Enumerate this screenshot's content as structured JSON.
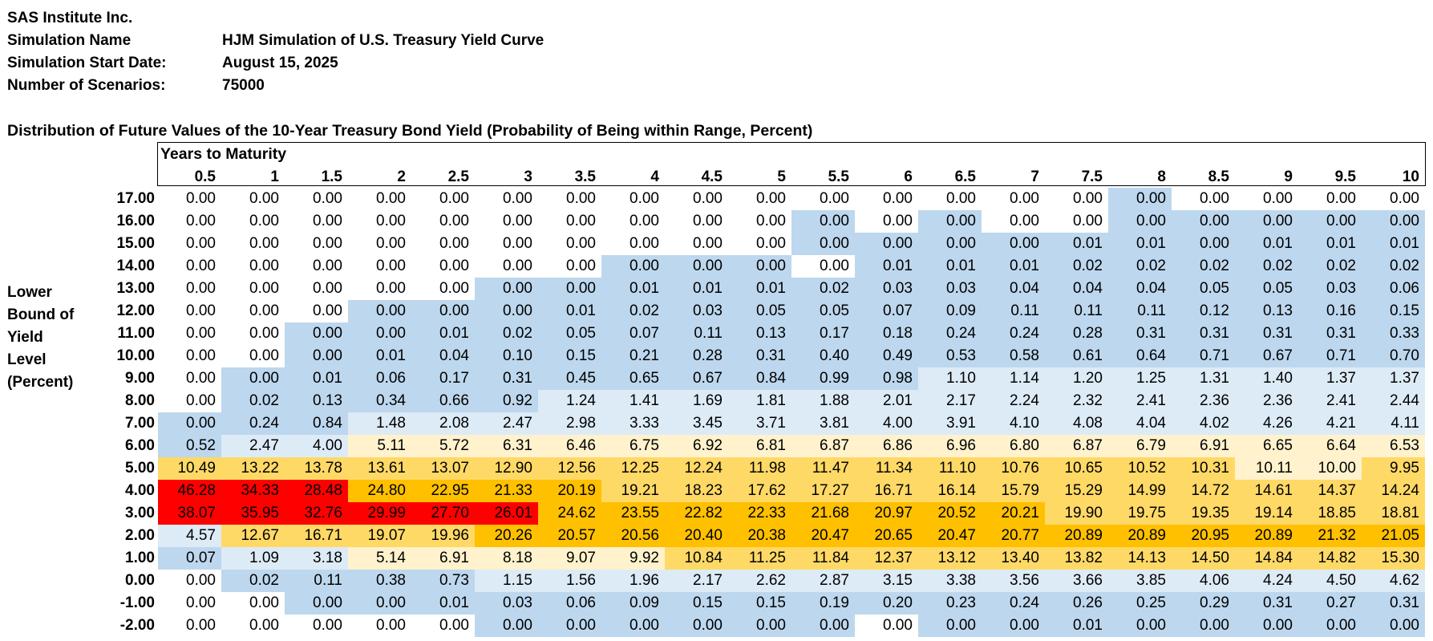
{
  "header": {
    "company": "SAS Institute Inc.",
    "rows": [
      {
        "label": "Simulation Name",
        "value": "HJM Simulation of U.S. Treasury Yield Curve"
      },
      {
        "label": "Simulation Start Date:",
        "value": "August 15, 2025"
      },
      {
        "label": "Number of Scenarios:",
        "value": "75000"
      }
    ]
  },
  "table": {
    "title": "Distribution of Future Values of the 10-Year Treasury Bond Yield (Probability of Being within Range, Percent)",
    "column_group_label": "Years to Maturity",
    "row_axis_label": [
      "Lower",
      "Bound of",
      "Yield",
      "Level",
      "(Percent)"
    ],
    "columns": [
      "0.5",
      "1",
      "1.5",
      "2",
      "2.5",
      "3",
      "3.5",
      "4",
      "4.5",
      "5",
      "5.5",
      "6",
      "6.5",
      "7",
      "7.5",
      "8",
      "8.5",
      "9",
      "9.5",
      "10"
    ],
    "colors": {
      "white": "#ffffff",
      "blue": "#bdd7ee",
      "lightblue": "#ddebf7",
      "lightyellow": "#fff2cc",
      "yellow": "#ffd966",
      "orange": "#ffc000",
      "red": "#ff0000"
    },
    "rows": [
      {
        "label": "17.00",
        "values": [
          "0.00",
          "0.00",
          "0.00",
          "0.00",
          "0.00",
          "0.00",
          "0.00",
          "0.00",
          "0.00",
          "0.00",
          "0.00",
          "0.00",
          "0.00",
          "0.00",
          "0.00",
          "0.00",
          "0.00",
          "0.00",
          "0.00",
          "0.00"
        ],
        "fills": "WWWWWWWWWWWWWWWBWWWW"
      },
      {
        "label": "16.00",
        "values": [
          "0.00",
          "0.00",
          "0.00",
          "0.00",
          "0.00",
          "0.00",
          "0.00",
          "0.00",
          "0.00",
          "0.00",
          "0.00",
          "0.00",
          "0.00",
          "0.00",
          "0.00",
          "0.00",
          "0.00",
          "0.00",
          "0.00",
          "0.00"
        ],
        "fills": "WWWWWWWWWWBWBWWBBBBB"
      },
      {
        "label": "15.00",
        "values": [
          "0.00",
          "0.00",
          "0.00",
          "0.00",
          "0.00",
          "0.00",
          "0.00",
          "0.00",
          "0.00",
          "0.00",
          "0.00",
          "0.00",
          "0.00",
          "0.00",
          "0.01",
          "0.01",
          "0.00",
          "0.01",
          "0.01",
          "0.01"
        ],
        "fills": "WWWWWWWWWWBBBBBBBBBB"
      },
      {
        "label": "14.00",
        "values": [
          "0.00",
          "0.00",
          "0.00",
          "0.00",
          "0.00",
          "0.00",
          "0.00",
          "0.00",
          "0.00",
          "0.00",
          "0.00",
          "0.01",
          "0.01",
          "0.01",
          "0.02",
          "0.02",
          "0.02",
          "0.02",
          "0.02",
          "0.02"
        ],
        "fills": "WWWWWWWBBBWBBBBBBBBB"
      },
      {
        "label": "13.00",
        "values": [
          "0.00",
          "0.00",
          "0.00",
          "0.00",
          "0.00",
          "0.00",
          "0.00",
          "0.01",
          "0.01",
          "0.01",
          "0.02",
          "0.03",
          "0.03",
          "0.04",
          "0.04",
          "0.04",
          "0.05",
          "0.05",
          "0.03",
          "0.06"
        ],
        "fills": "WWWWWBBBBBBBBBBBBBBB"
      },
      {
        "label": "12.00",
        "values": [
          "0.00",
          "0.00",
          "0.00",
          "0.00",
          "0.00",
          "0.00",
          "0.01",
          "0.02",
          "0.03",
          "0.05",
          "0.05",
          "0.07",
          "0.09",
          "0.11",
          "0.11",
          "0.11",
          "0.12",
          "0.13",
          "0.16",
          "0.15"
        ],
        "fills": "WWWBBBBBBBBBBBBBBBBB"
      },
      {
        "label": "11.00",
        "values": [
          "0.00",
          "0.00",
          "0.00",
          "0.00",
          "0.01",
          "0.02",
          "0.05",
          "0.07",
          "0.11",
          "0.13",
          "0.17",
          "0.18",
          "0.24",
          "0.24",
          "0.28",
          "0.31",
          "0.31",
          "0.31",
          "0.31",
          "0.33"
        ],
        "fills": "WWBBBBBBBBBBBBBBBBBB"
      },
      {
        "label": "10.00",
        "values": [
          "0.00",
          "0.00",
          "0.00",
          "0.01",
          "0.04",
          "0.10",
          "0.15",
          "0.21",
          "0.28",
          "0.31",
          "0.40",
          "0.49",
          "0.53",
          "0.58",
          "0.61",
          "0.64",
          "0.71",
          "0.67",
          "0.71",
          "0.70"
        ],
        "fills": "WWBBBBBBBBBBBBBBBBBB"
      },
      {
        "label": "9.00",
        "values": [
          "0.00",
          "0.00",
          "0.01",
          "0.06",
          "0.17",
          "0.31",
          "0.45",
          "0.65",
          "0.67",
          "0.84",
          "0.99",
          "0.98",
          "1.10",
          "1.14",
          "1.20",
          "1.25",
          "1.31",
          "1.40",
          "1.37",
          "1.37"
        ],
        "fills": "WBBBBBBBBBBBLLLLLLLL"
      },
      {
        "label": "8.00",
        "values": [
          "0.00",
          "0.02",
          "0.13",
          "0.34",
          "0.66",
          "0.92",
          "1.24",
          "1.41",
          "1.69",
          "1.81",
          "1.88",
          "2.01",
          "2.17",
          "2.24",
          "2.32",
          "2.41",
          "2.36",
          "2.36",
          "2.41",
          "2.44"
        ],
        "fills": "WBBBBBLLLLLLLLLLLLLL"
      },
      {
        "label": "7.00",
        "values": [
          "0.00",
          "0.24",
          "0.84",
          "1.48",
          "2.08",
          "2.47",
          "2.98",
          "3.33",
          "3.45",
          "3.71",
          "3.81",
          "4.00",
          "3.91",
          "4.10",
          "4.08",
          "4.04",
          "4.02",
          "4.26",
          "4.21",
          "4.11"
        ],
        "fills": "BBBLLLLLLLLLLLLLLLLL"
      },
      {
        "label": "6.00",
        "values": [
          "0.52",
          "2.47",
          "4.00",
          "5.11",
          "5.72",
          "6.31",
          "6.46",
          "6.75",
          "6.92",
          "6.81",
          "6.87",
          "6.86",
          "6.96",
          "6.80",
          "6.87",
          "6.79",
          "6.91",
          "6.65",
          "6.64",
          "6.53"
        ],
        "fills": "BLLPPPPPPPPPPPPPPPPP"
      },
      {
        "label": "5.00",
        "values": [
          "10.49",
          "13.22",
          "13.78",
          "13.61",
          "13.07",
          "12.90",
          "12.56",
          "12.25",
          "12.24",
          "11.98",
          "11.47",
          "11.34",
          "11.10",
          "10.76",
          "10.65",
          "10.52",
          "10.31",
          "10.11",
          "10.00",
          "9.95"
        ],
        "fills": "YYYYYYYYYYYYYYYYYPPY"
      },
      {
        "label": "4.00",
        "values": [
          "46.28",
          "34.33",
          "28.48",
          "24.80",
          "22.95",
          "21.33",
          "20.19",
          "19.21",
          "18.23",
          "17.62",
          "17.27",
          "16.71",
          "16.14",
          "15.79",
          "15.29",
          "14.99",
          "14.72",
          "14.61",
          "14.37",
          "14.24"
        ],
        "fills": "RRROOOOYYYYYYYYYYYYY"
      },
      {
        "label": "3.00",
        "values": [
          "38.07",
          "35.95",
          "32.76",
          "29.99",
          "27.70",
          "26.01",
          "24.62",
          "23.55",
          "22.82",
          "22.33",
          "21.68",
          "20.97",
          "20.52",
          "20.21",
          "19.90",
          "19.75",
          "19.35",
          "19.14",
          "18.85",
          "18.81"
        ],
        "fills": "RRRRRROOOOOOOOYYYYYY"
      },
      {
        "label": "2.00",
        "values": [
          "4.57",
          "12.67",
          "16.71",
          "19.07",
          "19.96",
          "20.26",
          "20.57",
          "20.56",
          "20.40",
          "20.38",
          "20.47",
          "20.65",
          "20.47",
          "20.77",
          "20.89",
          "20.89",
          "20.95",
          "20.89",
          "21.32",
          "21.05"
        ],
        "fills": "LYYYYOOOOOOOOOOOOOOO"
      },
      {
        "label": "1.00",
        "values": [
          "0.07",
          "1.09",
          "3.18",
          "5.14",
          "6.91",
          "8.18",
          "9.07",
          "9.92",
          "10.84",
          "11.25",
          "11.84",
          "12.37",
          "13.12",
          "13.40",
          "13.82",
          "14.13",
          "14.50",
          "14.84",
          "14.82",
          "15.30"
        ],
        "fills": "BLLPPPPPYYYYYYYYYYYY"
      },
      {
        "label": "0.00",
        "values": [
          "0.00",
          "0.02",
          "0.11",
          "0.38",
          "0.73",
          "1.15",
          "1.56",
          "1.96",
          "2.17",
          "2.62",
          "2.87",
          "3.15",
          "3.38",
          "3.56",
          "3.66",
          "3.85",
          "4.06",
          "4.24",
          "4.50",
          "4.62"
        ],
        "fills": "WBBBBLLLLLLLLLLLLLLL"
      },
      {
        "label": "-1.00",
        "values": [
          "0.00",
          "0.00",
          "0.00",
          "0.00",
          "0.01",
          "0.03",
          "0.06",
          "0.09",
          "0.15",
          "0.15",
          "0.19",
          "0.20",
          "0.23",
          "0.24",
          "0.26",
          "0.25",
          "0.29",
          "0.31",
          "0.27",
          "0.31"
        ],
        "fills": "WWBBBBBBBBBBBBBBBBBB"
      },
      {
        "label": "-2.00",
        "values": [
          "0.00",
          "0.00",
          "0.00",
          "0.00",
          "0.00",
          "0.00",
          "0.00",
          "0.00",
          "0.00",
          "0.00",
          "0.00",
          "0.00",
          "0.00",
          "0.00",
          "0.01",
          "0.00",
          "0.00",
          "0.00",
          "0.00",
          "0.00"
        ],
        "fills": "WWWWWBBBBBBWBBBBBBBB"
      }
    ]
  }
}
